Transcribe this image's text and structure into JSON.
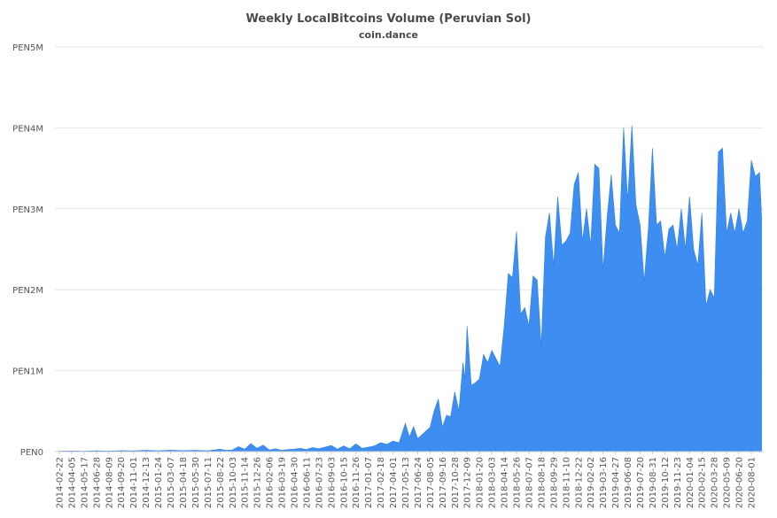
{
  "chart_data": {
    "type": "area",
    "title": "Weekly LocalBitcoins Volume (Peruvian Sol)",
    "subtitle": "coin.dance",
    "xlabel": "",
    "ylabel": "",
    "ylim": [
      0,
      5000000
    ],
    "y_ticks": [
      {
        "value": 0,
        "label": "PEN0"
      },
      {
        "value": 1000000,
        "label": "PEN1M"
      },
      {
        "value": 2000000,
        "label": "PEN2M"
      },
      {
        "value": 3000000,
        "label": "PEN3M"
      },
      {
        "value": 4000000,
        "label": "PEN4M"
      },
      {
        "value": 5000000,
        "label": "PEN5M"
      }
    ],
    "x_tick_labels": [
      "2014-02-22",
      "2014-04-05",
      "2014-05-17",
      "2014-06-28",
      "2014-08-09",
      "2014-09-20",
      "2014-11-01",
      "2014-12-13",
      "2015-01-24",
      "2015-03-07",
      "2015-04-18",
      "2015-05-30",
      "2015-07-11",
      "2015-08-22",
      "2015-10-03",
      "2015-11-14",
      "2015-12-26",
      "2016-02-06",
      "2016-03-19",
      "2016-04-30",
      "2016-06-11",
      "2016-07-23",
      "2016-09-03",
      "2016-10-15",
      "2016-11-26",
      "2017-01-07",
      "2017-02-18",
      "2017-04-01",
      "2017-05-13",
      "2017-06-24",
      "2017-08-05",
      "2017-09-16",
      "2017-10-28",
      "2017-12-09",
      "2018-01-20",
      "2018-03-03",
      "2018-04-14",
      "2018-05-26",
      "2018-07-07",
      "2018-08-18",
      "2018-09-29",
      "2018-11-10",
      "2018-12-22",
      "2019-02-02",
      "2019-03-16",
      "2019-04-27",
      "2019-06-08",
      "2019-07-20",
      "2019-08-31",
      "2019-10-12",
      "2019-11-23",
      "2020-01-04",
      "2020-02-15",
      "2020-03-28",
      "2020-05-09",
      "2020-06-20",
      "2020-08-01"
    ],
    "grid": true,
    "legend": "none",
    "series": [
      {
        "color": "#3d8ef0",
        "points": [
          [
            "2014-02-22",
            5000
          ],
          [
            "2014-04-05",
            8000
          ],
          [
            "2014-05-17",
            6000
          ],
          [
            "2014-06-28",
            10000
          ],
          [
            "2014-08-09",
            7000
          ],
          [
            "2014-09-20",
            12000
          ],
          [
            "2014-11-01",
            9000
          ],
          [
            "2014-12-13",
            15000
          ],
          [
            "2015-01-24",
            10000
          ],
          [
            "2015-03-07",
            18000
          ],
          [
            "2015-04-18",
            12000
          ],
          [
            "2015-05-30",
            15000
          ],
          [
            "2015-07-11",
            10000
          ],
          [
            "2015-08-22",
            30000
          ],
          [
            "2015-09-12",
            15000
          ],
          [
            "2015-10-03",
            20000
          ],
          [
            "2015-10-24",
            60000
          ],
          [
            "2015-11-14",
            30000
          ],
          [
            "2015-12-05",
            100000
          ],
          [
            "2015-12-26",
            40000
          ],
          [
            "2016-01-16",
            80000
          ],
          [
            "2016-02-06",
            20000
          ],
          [
            "2016-02-27",
            35000
          ],
          [
            "2016-03-19",
            15000
          ],
          [
            "2016-04-09",
            25000
          ],
          [
            "2016-04-30",
            30000
          ],
          [
            "2016-05-21",
            40000
          ],
          [
            "2016-06-11",
            25000
          ],
          [
            "2016-07-02",
            50000
          ],
          [
            "2016-07-23",
            35000
          ],
          [
            "2016-08-13",
            55000
          ],
          [
            "2016-09-03",
            75000
          ],
          [
            "2016-09-24",
            30000
          ],
          [
            "2016-10-15",
            70000
          ],
          [
            "2016-11-05",
            35000
          ],
          [
            "2016-11-26",
            95000
          ],
          [
            "2016-12-17",
            40000
          ],
          [
            "2017-01-07",
            55000
          ],
          [
            "2017-01-28",
            70000
          ],
          [
            "2017-02-18",
            110000
          ],
          [
            "2017-03-11",
            90000
          ],
          [
            "2017-04-01",
            130000
          ],
          [
            "2017-04-22",
            110000
          ],
          [
            "2017-05-13",
            350000
          ],
          [
            "2017-05-27",
            180000
          ],
          [
            "2017-06-10",
            310000
          ],
          [
            "2017-06-24",
            160000
          ],
          [
            "2017-07-15",
            230000
          ],
          [
            "2017-08-05",
            300000
          ],
          [
            "2017-08-19",
            500000
          ],
          [
            "2017-09-02",
            650000
          ],
          [
            "2017-09-16",
            300000
          ],
          [
            "2017-09-30",
            450000
          ],
          [
            "2017-10-14",
            430000
          ],
          [
            "2017-10-28",
            740000
          ],
          [
            "2017-11-11",
            500000
          ],
          [
            "2017-11-25",
            1100000
          ],
          [
            "2017-12-02",
            900000
          ],
          [
            "2017-12-09",
            1550000
          ],
          [
            "2017-12-23",
            820000
          ],
          [
            "2018-01-06",
            850000
          ],
          [
            "2018-01-20",
            900000
          ],
          [
            "2018-02-03",
            1200000
          ],
          [
            "2018-02-17",
            1100000
          ],
          [
            "2018-03-03",
            1250000
          ],
          [
            "2018-03-17",
            1150000
          ],
          [
            "2018-03-31",
            1050000
          ],
          [
            "2018-04-14",
            1550000
          ],
          [
            "2018-04-28",
            2200000
          ],
          [
            "2018-05-12",
            2150000
          ],
          [
            "2018-05-26",
            2720000
          ],
          [
            "2018-06-09",
            1700000
          ],
          [
            "2018-06-23",
            1780000
          ],
          [
            "2018-07-07",
            1550000
          ],
          [
            "2018-07-21",
            2170000
          ],
          [
            "2018-08-04",
            2120000
          ],
          [
            "2018-08-18",
            1300000
          ],
          [
            "2018-09-01",
            2650000
          ],
          [
            "2018-09-15",
            2950000
          ],
          [
            "2018-09-29",
            2300000
          ],
          [
            "2018-10-13",
            3150000
          ],
          [
            "2018-10-27",
            2550000
          ],
          [
            "2018-11-10",
            2600000
          ],
          [
            "2018-11-24",
            2700000
          ],
          [
            "2018-12-08",
            3300000
          ],
          [
            "2018-12-22",
            3450000
          ],
          [
            "2019-01-05",
            2600000
          ],
          [
            "2019-01-19",
            3000000
          ],
          [
            "2019-02-02",
            2550000
          ],
          [
            "2019-02-16",
            3550000
          ],
          [
            "2019-03-02",
            3500000
          ],
          [
            "2019-03-16",
            2250000
          ],
          [
            "2019-03-30",
            2900000
          ],
          [
            "2019-04-13",
            3420000
          ],
          [
            "2019-04-27",
            2800000
          ],
          [
            "2019-05-11",
            2700000
          ],
          [
            "2019-05-25",
            4000000
          ],
          [
            "2019-06-08",
            3100000
          ],
          [
            "2019-06-22",
            4030000
          ],
          [
            "2019-07-06",
            3050000
          ],
          [
            "2019-07-20",
            2800000
          ],
          [
            "2019-08-03",
            2100000
          ],
          [
            "2019-08-17",
            2750000
          ],
          [
            "2019-08-31",
            3750000
          ],
          [
            "2019-09-14",
            2800000
          ],
          [
            "2019-09-28",
            2850000
          ],
          [
            "2019-10-12",
            2400000
          ],
          [
            "2019-10-26",
            2750000
          ],
          [
            "2019-11-09",
            2800000
          ],
          [
            "2019-11-23",
            2500000
          ],
          [
            "2019-12-07",
            3000000
          ],
          [
            "2019-12-21",
            2500000
          ],
          [
            "2020-01-04",
            3150000
          ],
          [
            "2020-01-18",
            2500000
          ],
          [
            "2020-02-01",
            2300000
          ],
          [
            "2020-02-15",
            2950000
          ],
          [
            "2020-02-29",
            1800000
          ],
          [
            "2020-03-14",
            2000000
          ],
          [
            "2020-03-28",
            1900000
          ],
          [
            "2020-04-11",
            3700000
          ],
          [
            "2020-04-25",
            3750000
          ],
          [
            "2020-05-09",
            2700000
          ],
          [
            "2020-05-23",
            2950000
          ],
          [
            "2020-06-06",
            2700000
          ],
          [
            "2020-06-20",
            3000000
          ],
          [
            "2020-07-04",
            2700000
          ],
          [
            "2020-07-18",
            2850000
          ],
          [
            "2020-08-01",
            3600000
          ],
          [
            "2020-08-15",
            3400000
          ],
          [
            "2020-08-29",
            3450000
          ],
          [
            "2020-09-05",
            2900000
          ]
        ]
      }
    ]
  }
}
